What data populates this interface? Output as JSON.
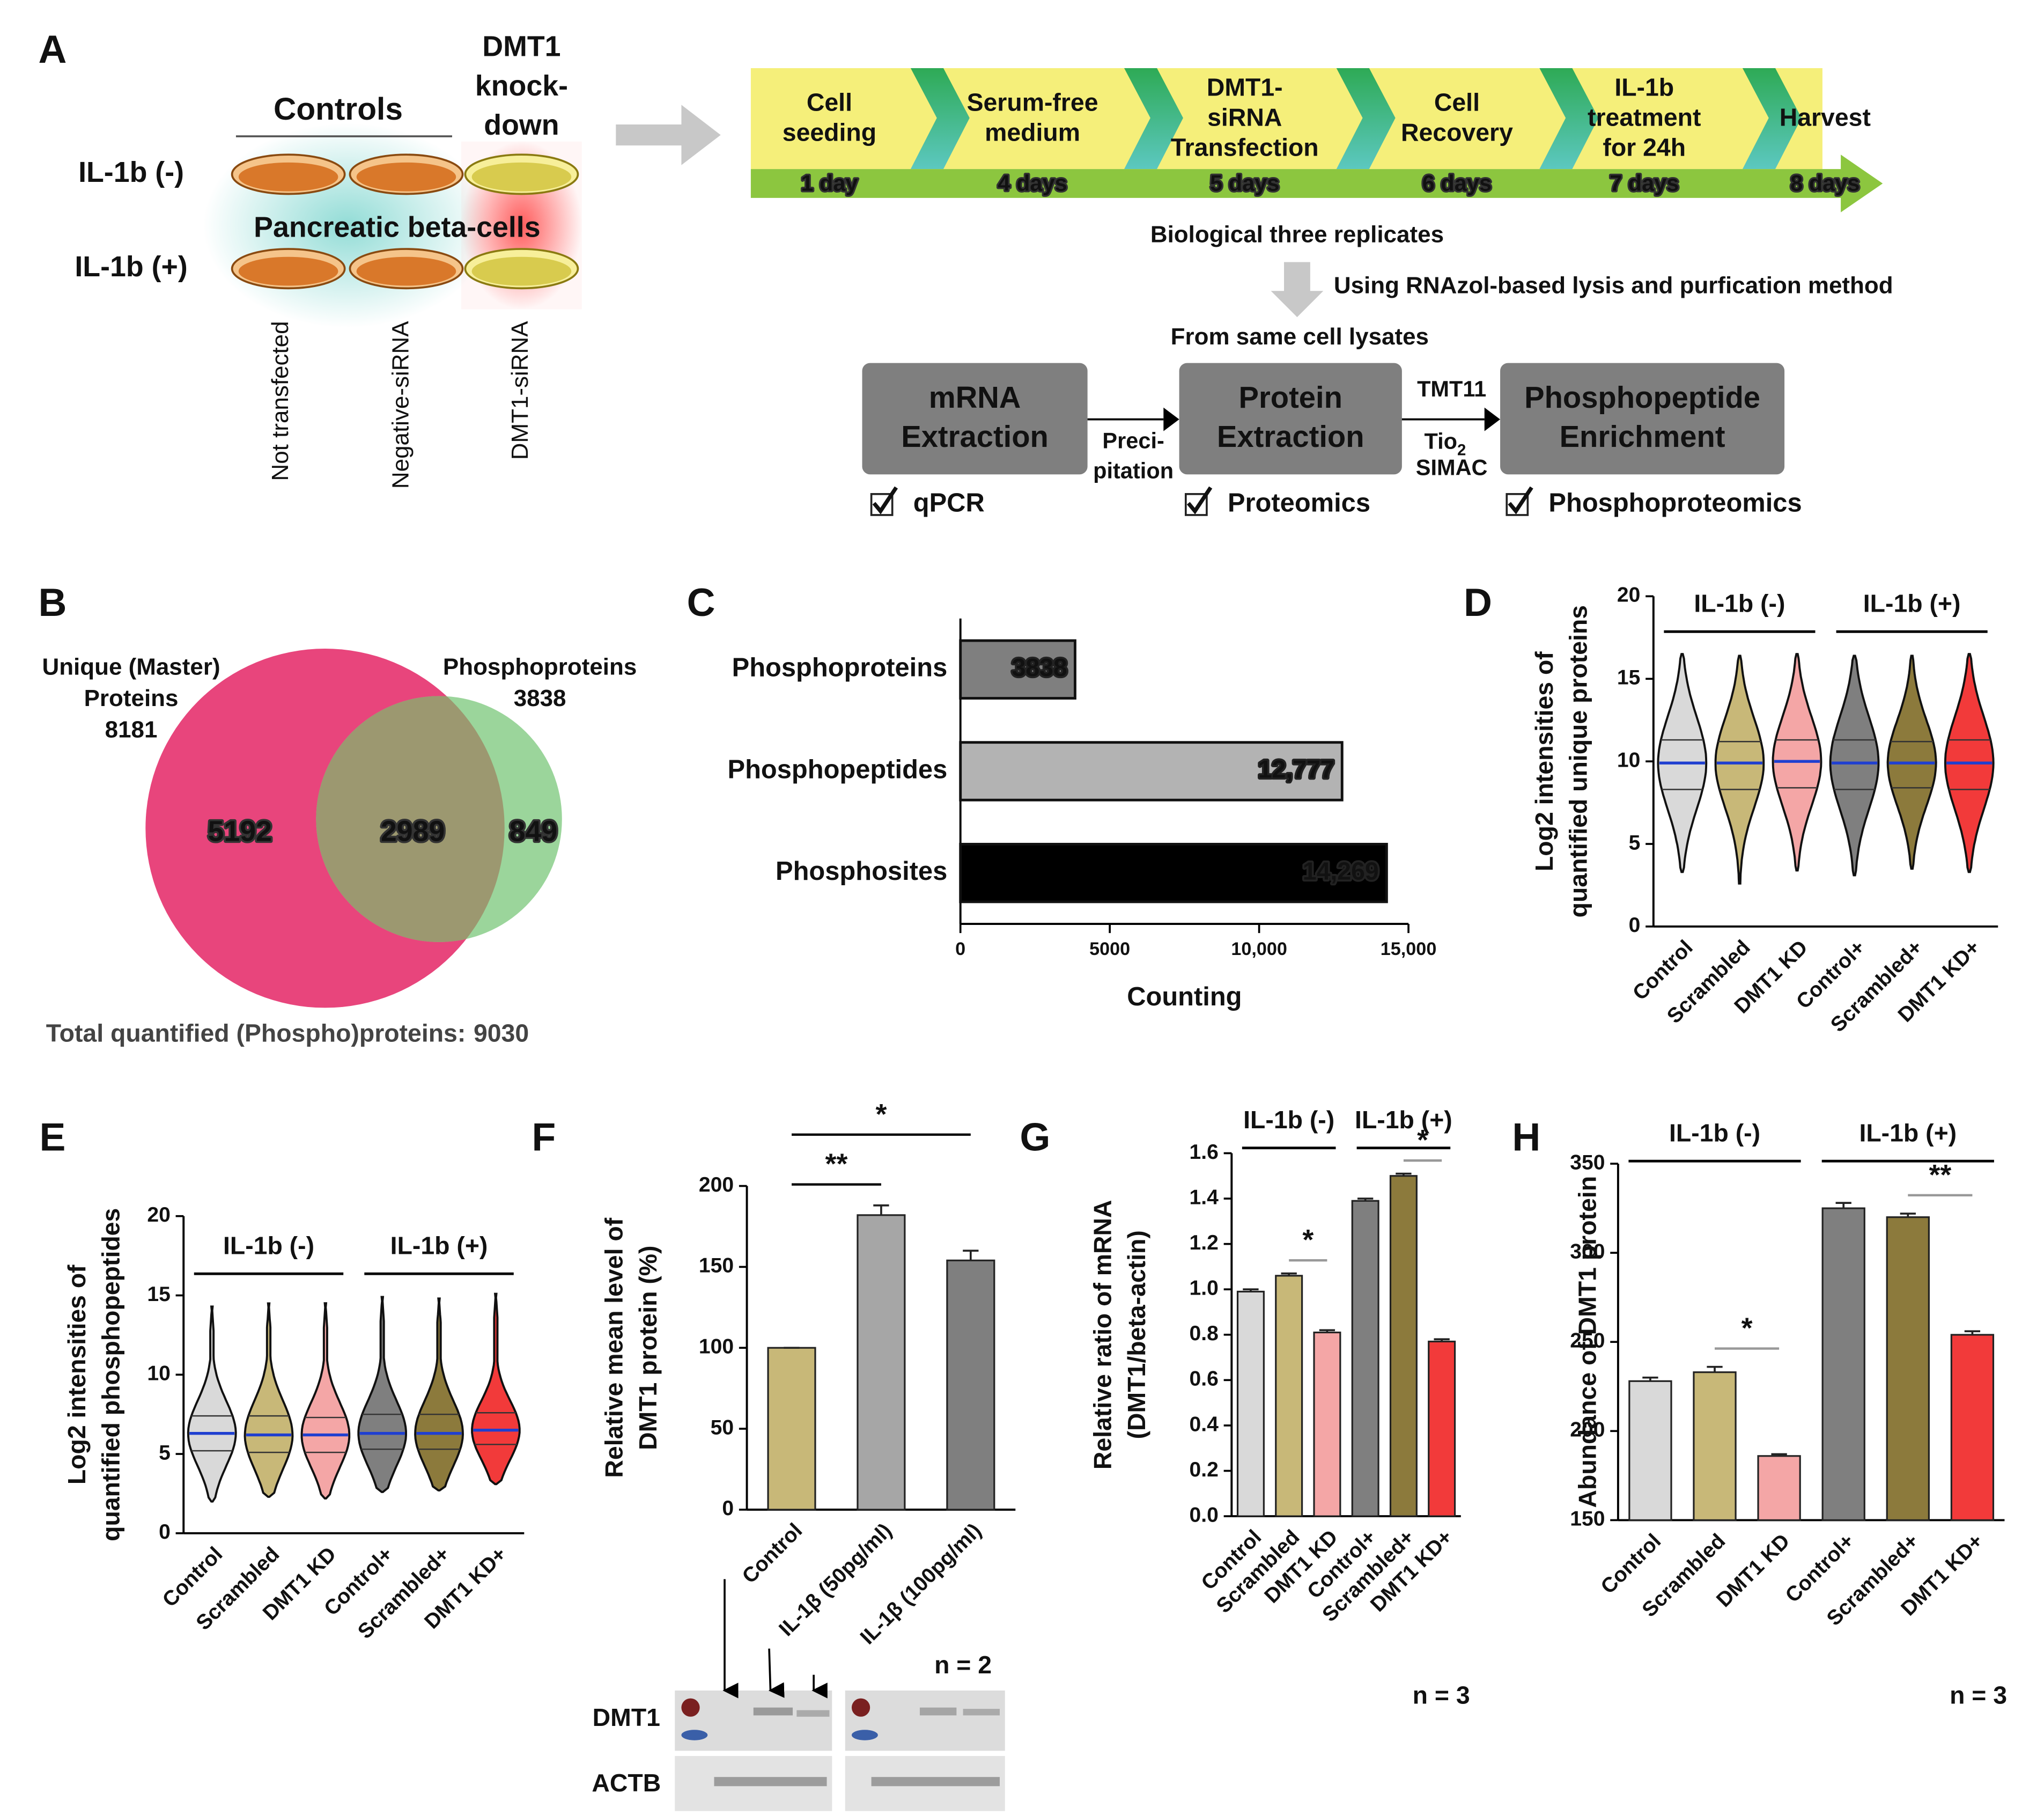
{
  "diagram": {
    "label": "A",
    "controls": "Controls",
    "knockdown": [
      "DMT1",
      "knock-",
      "down"
    ],
    "rows": [
      "IL-1b (-)",
      "IL-1b (+)"
    ],
    "cell_type": "Pancreatic beta-cells",
    "columns": [
      "Not transfected",
      "Negative-siRNA",
      "DMT1-siRNA"
    ],
    "timeline": [
      {
        "step": [
          "Cell",
          "seeding"
        ],
        "day": "1 day"
      },
      {
        "step": [
          "Serum-free",
          "medium"
        ],
        "day": "4 days"
      },
      {
        "step": [
          "DMT1-",
          "siRNA",
          "Transfection"
        ],
        "day": "5 days"
      },
      {
        "step": [
          "Cell",
          "Recovery"
        ],
        "day": "6 days"
      },
      {
        "step": [
          "IL-1b",
          "treatment",
          "for 24h"
        ],
        "day": "7 days"
      },
      {
        "step": [
          "Harvest"
        ],
        "day": "8 days"
      }
    ],
    "replicates": "Biological three replicates",
    "method": "Using RNAzol-based lysis and purfication method",
    "source": "From same cell lysates",
    "steps": [
      {
        "title": [
          "mRNA",
          "Extraction"
        ],
        "check": "qPCR"
      },
      {
        "title": [
          "Protein",
          "Extraction"
        ],
        "check": "Proteomics"
      },
      {
        "title": [
          "Phosphopeptide",
          "Enrichment"
        ],
        "check": "Phosphoproteomics"
      }
    ],
    "precipitation": [
      "Preci-",
      "pitation"
    ],
    "tmt": "TMT11",
    "tio": "Tio",
    "tio_sub": "2",
    "simac": "SIMAC"
  },
  "chart_data": [
    {
      "type": "venn",
      "label": "B",
      "sets": [
        {
          "name": [
            "Unique (Master)",
            "Proteins"
          ],
          "size": 8181,
          "color": "#e8457c"
        },
        {
          "name": [
            "Phosphoproteins"
          ],
          "size": 3838,
          "color": "#9bd59b"
        }
      ],
      "overlap_color": "#9c9870",
      "regions": [
        5192,
        2989,
        849
      ],
      "total_label": "Total quantified (Phospho)proteins:",
      "total": 9030
    },
    {
      "type": "bar",
      "horizontal": true,
      "label": "C",
      "categories": [
        "Phosphoproteins",
        "Phosphopeptides",
        "Phosphosites"
      ],
      "values": [
        3838,
        12777,
        14269
      ],
      "value_labels": [
        "3838",
        "12,777",
        "14,269"
      ],
      "colors": [
        "#7f7f7f",
        "#b3b3b3",
        "#000000"
      ],
      "xlim": [
        0,
        15000
      ],
      "xticks": [
        0,
        5000,
        {
          "value": 10000,
          "label": "10,000"
        },
        {
          "value": 15000,
          "label": "15,000"
        }
      ],
      "xlabel": "Counting"
    },
    {
      "type": "violin",
      "label": "D",
      "categories": [
        "Control",
        "Scrambled",
        "DMT1 KD",
        "Control+",
        "Scrambled+",
        "DMT1 KD+"
      ],
      "colors": [
        "#d9d9d9",
        "#c8b878",
        "#f4a6a6",
        "#7f7f7f",
        "#8c7a3c",
        "#f23a3a"
      ],
      "groups": [
        "IL-1b (-)",
        "IL-1b (+)"
      ],
      "min": [
        3.3,
        2.6,
        3.4,
        3.1,
        3.5,
        3.3
      ],
      "q1": [
        8.3,
        8.3,
        8.4,
        8.3,
        8.4,
        8.3
      ],
      "median": [
        9.9,
        9.9,
        10.0,
        9.9,
        9.9,
        9.9
      ],
      "q3": [
        11.3,
        11.2,
        11.3,
        11.3,
        11.2,
        11.3
      ],
      "max": [
        16.5,
        16.4,
        16.5,
        16.4,
        16.4,
        16.5
      ],
      "median_color": "#1f3fd0",
      "ylim": [
        0,
        20
      ],
      "yticks": [
        0,
        5,
        10,
        15,
        20
      ],
      "ylabel": [
        "Log2 intensities of",
        "quantified unique proteins"
      ]
    },
    {
      "type": "violin",
      "label": "E",
      "categories": [
        "Control",
        "Scrambled",
        "DMT1 KD",
        "Control+",
        "Scrambled+",
        "DMT1 KD+"
      ],
      "colors": [
        "#d9d9d9",
        "#c8b878",
        "#f4a6a6",
        "#7f7f7f",
        "#8c7a3c",
        "#f23a3a"
      ],
      "groups": [
        "IL-1b (-)",
        "IL-1b (+)"
      ],
      "min": [
        2.0,
        2.3,
        2.2,
        2.6,
        2.7,
        3.1
      ],
      "q1": [
        5.2,
        5.1,
        5.1,
        5.3,
        5.3,
        5.6
      ],
      "median": [
        6.3,
        6.2,
        6.2,
        6.3,
        6.3,
        6.5
      ],
      "q3": [
        7.4,
        7.4,
        7.3,
        7.5,
        7.5,
        7.6
      ],
      "max": [
        14.3,
        14.5,
        14.5,
        14.9,
        14.8,
        15.1
      ],
      "median_color": "#1f3fd0",
      "ylim": [
        0,
        20
      ],
      "yticks": [
        0,
        5,
        10,
        15,
        20
      ],
      "ylabel": [
        "Log2 intensities of",
        "quantified phosphopeptides"
      ]
    },
    {
      "type": "bar",
      "label": "F",
      "categories": [
        "Control",
        "IL-1β (50pg/ml)",
        "IL-1β (100pg/ml)"
      ],
      "values": [
        100,
        182,
        154
      ],
      "errors": [
        0,
        6,
        6
      ],
      "colors": [
        "#c8b878",
        "#a6a6a6",
        "#7f7f7f"
      ],
      "ylim": [
        0,
        200
      ],
      "yticks": [
        0,
        50,
        100,
        150,
        200
      ],
      "ylabel": [
        "Relative mean level of",
        "DMT1 protein (%)"
      ],
      "significance": [
        {
          "pair": [
            "Control",
            "IL-1β (50pg/ml)"
          ],
          "label": "**"
        },
        {
          "pair": [
            "Control",
            "IL-1β (100pg/ml)"
          ],
          "label": "*"
        }
      ],
      "sig_color": "#000000",
      "n": "n = 2",
      "blot_labels": [
        "DMT1",
        "ACTB"
      ]
    },
    {
      "type": "bar",
      "label": "G",
      "categories": [
        "Control",
        "Scrambled",
        "DMT1 KD",
        "Control+",
        "Scrambled+",
        "DMT1 KD+"
      ],
      "groups": [
        "IL-1b (-)",
        "IL-1b (+)"
      ],
      "values": [
        0.99,
        1.06,
        0.81,
        1.39,
        1.5,
        0.77
      ],
      "errors": [
        0.01,
        0.01,
        0.01,
        0.01,
        0.01,
        0.01
      ],
      "colors": [
        "#d9d9d9",
        "#c8b878",
        "#f4a6a6",
        "#7f7f7f",
        "#8c7a3c",
        "#f23a3a"
      ],
      "ylim": [
        0,
        1.6
      ],
      "yticks": [
        {
          "value": 0,
          "label": "0.0"
        },
        0.2,
        0.4,
        0.6,
        0.8,
        {
          "value": 1,
          "label": "1.0"
        },
        1.2,
        1.4,
        1.6
      ],
      "ylabel": [
        "Relative ratio of mRNA",
        "(DMT1/beta-actin)"
      ],
      "significance": [
        {
          "pair": [
            "Scrambled",
            "DMT1 KD"
          ],
          "label": "*"
        },
        {
          "pair": [
            "Scrambled+",
            "DMT1 KD+"
          ],
          "label": "*"
        }
      ],
      "sig_color": "#999999",
      "n": "n = 3"
    },
    {
      "type": "bar",
      "label": "H",
      "categories": [
        "Control",
        "Scrambled",
        "DMT1 KD",
        "Control+",
        "Scrambled+",
        "DMT1 KD+"
      ],
      "groups": [
        "IL-1b (-)",
        "IL-1b (+)"
      ],
      "values": [
        228,
        233,
        186,
        325,
        320,
        254
      ],
      "errors": [
        2,
        3,
        1,
        3,
        2,
        2
      ],
      "colors": [
        "#d9d9d9",
        "#c8b878",
        "#f4a6a6",
        "#7f7f7f",
        "#8c7a3c",
        "#f23a3a"
      ],
      "ylim": [
        150,
        350
      ],
      "yticks": [
        150,
        200,
        250,
        300,
        350
      ],
      "ylabel": [
        "Abundance of DMT1 protein"
      ],
      "significance": [
        {
          "pair": [
            "Scrambled",
            "DMT1 KD"
          ],
          "label": "*"
        },
        {
          "pair": [
            "Scrambled+",
            "DMT1 KD+"
          ],
          "label": "**"
        }
      ],
      "sig_color": "#999999",
      "n": "n = 3"
    }
  ]
}
